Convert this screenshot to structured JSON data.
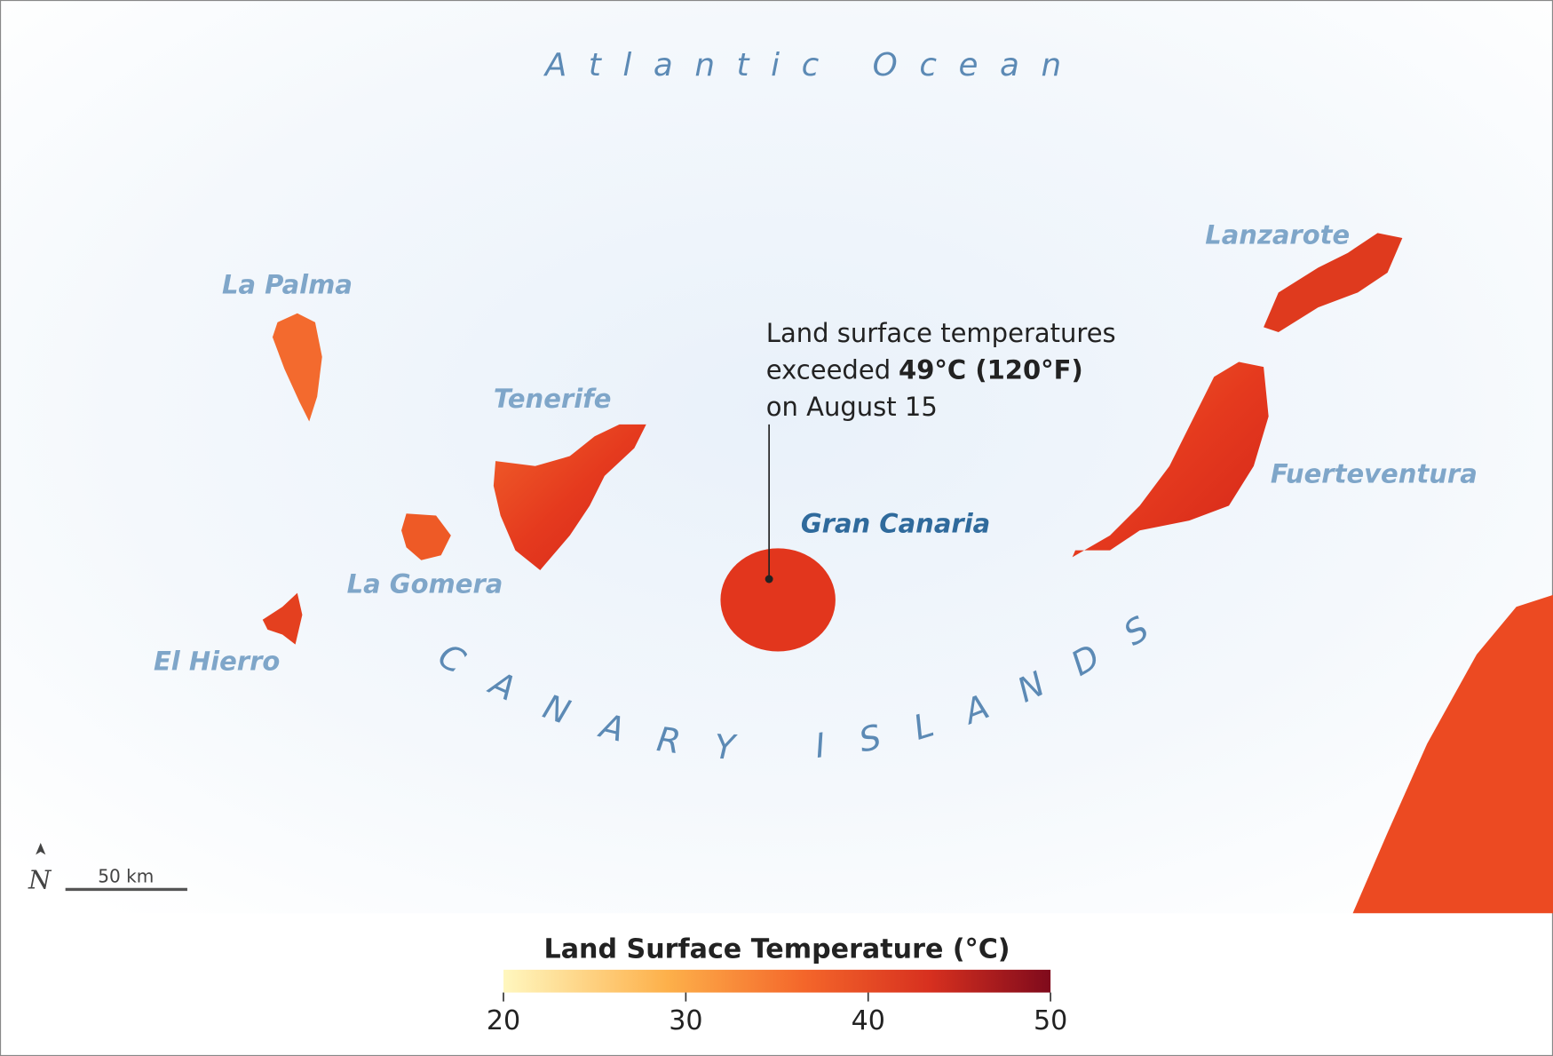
{
  "map": {
    "ocean": "Atlantic Ocean",
    "archipelago": "CANARY ISLANDS",
    "islands": [
      "La Palma",
      "Tenerife",
      "La Gomera",
      "El Hierro",
      "Gran Canaria",
      "Lanzarote",
      "Fuerteventura"
    ],
    "annotation": {
      "line1": "Land surface temperatures",
      "line2": "exceeded",
      "line2_bold": "49°C (120°F)",
      "line3": "on August 15"
    },
    "north": "N",
    "scale": "50 km"
  },
  "legend": {
    "title": "Land Surface Temperature (°C)",
    "range": [
      20,
      50
    ],
    "ticks": [
      20,
      30,
      40,
      50
    ]
  }
}
